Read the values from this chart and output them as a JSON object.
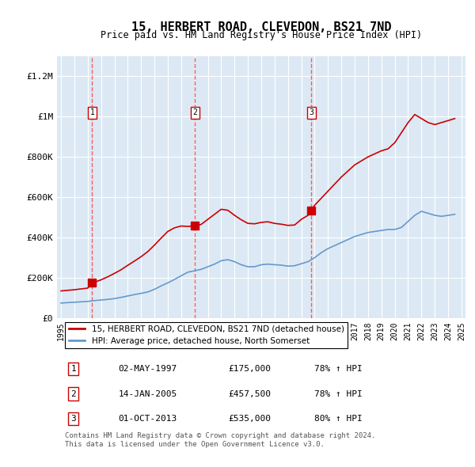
{
  "title": "15, HERBERT ROAD, CLEVEDON, BS21 7ND",
  "subtitle": "Price paid vs. HM Land Registry's House Price Index (HPI)",
  "ylabel": "",
  "background_color": "#dce9f5",
  "plot_bg_color": "#dce9f5",
  "grid_color": "#ffffff",
  "ylim": [
    0,
    1300000
  ],
  "yticks": [
    0,
    200000,
    400000,
    600000,
    800000,
    1000000,
    1200000
  ],
  "ytick_labels": [
    "£0",
    "£200K",
    "£400K",
    "£600K",
    "£800K",
    "£1M",
    "£1.2M"
  ],
  "year_start": 1995,
  "year_end": 2025,
  "sale_dates": [
    1997.33,
    2005.04,
    2013.75
  ],
  "sale_prices": [
    175000,
    457500,
    535000
  ],
  "sale_labels": [
    "1",
    "2",
    "3"
  ],
  "sale_info": [
    [
      "1",
      "02-MAY-1997",
      "£175,000",
      "78% ↑ HPI"
    ],
    [
      "2",
      "14-JAN-2005",
      "£457,500",
      "78% ↑ HPI"
    ],
    [
      "3",
      "01-OCT-2013",
      "£535,000",
      "80% ↑ HPI"
    ]
  ],
  "line_color_red": "#cc0000",
  "line_color_blue": "#6699cc",
  "marker_color": "#cc0000",
  "dashed_line_color": "#ff4444",
  "legend_label_red": "15, HERBERT ROAD, CLEVEDON, BS21 7ND (detached house)",
  "legend_label_blue": "HPI: Average price, detached house, North Somerset",
  "footer": "Contains HM Land Registry data © Crown copyright and database right 2024.\nThis data is licensed under the Open Government Licence v3.0.",
  "hpi_years": [
    1995,
    1995.5,
    1996,
    1996.5,
    1997,
    1997.5,
    1998,
    1998.5,
    1999,
    1999.5,
    2000,
    2000.5,
    2001,
    2001.5,
    2002,
    2002.5,
    2003,
    2003.5,
    2004,
    2004.5,
    2005,
    2005.5,
    2006,
    2006.5,
    2007,
    2007.5,
    2008,
    2008.5,
    2009,
    2009.5,
    2010,
    2010.5,
    2011,
    2011.5,
    2012,
    2012.5,
    2013,
    2013.5,
    2014,
    2014.5,
    2015,
    2015.5,
    2016,
    2016.5,
    2017,
    2017.5,
    2018,
    2018.5,
    2019,
    2019.5,
    2020,
    2020.5,
    2021,
    2021.5,
    2022,
    2022.5,
    2023,
    2023.5,
    2024,
    2024.5
  ],
  "hpi_values": [
    75000,
    77000,
    79000,
    81000,
    83000,
    87000,
    90000,
    93000,
    97000,
    103000,
    110000,
    117000,
    123000,
    130000,
    143000,
    160000,
    175000,
    192000,
    210000,
    228000,
    235000,
    242000,
    255000,
    268000,
    285000,
    290000,
    280000,
    265000,
    255000,
    255000,
    265000,
    268000,
    265000,
    263000,
    258000,
    260000,
    270000,
    280000,
    300000,
    325000,
    345000,
    360000,
    375000,
    390000,
    405000,
    415000,
    425000,
    430000,
    435000,
    440000,
    440000,
    450000,
    480000,
    510000,
    530000,
    520000,
    510000,
    505000,
    510000,
    515000
  ],
  "price_years": [
    1995,
    1995.5,
    1996,
    1996.5,
    1997,
    1997.33,
    1997.5,
    1998,
    1998.5,
    1999,
    1999.5,
    2000,
    2000.5,
    2001,
    2001.5,
    2002,
    2002.5,
    2003,
    2003.5,
    2004,
    2004.5,
    2005,
    2005.04,
    2005.5,
    2006,
    2006.5,
    2007,
    2007.5,
    2008,
    2008.5,
    2009,
    2009.5,
    2010,
    2010.5,
    2011,
    2011.5,
    2012,
    2012.5,
    2013,
    2013.5,
    2013.75,
    2014,
    2014.5,
    2015,
    2015.5,
    2016,
    2016.5,
    2017,
    2017.5,
    2018,
    2018.5,
    2019,
    2019.5,
    2020,
    2020.5,
    2021,
    2021.5,
    2022,
    2022.5,
    2023,
    2023.5,
    2024,
    2024.5
  ],
  "price_values": [
    135000,
    138000,
    141000,
    145000,
    149000,
    175000,
    178000,
    190000,
    205000,
    222000,
    240000,
    262000,
    283000,
    305000,
    330000,
    362000,
    397000,
    430000,
    448000,
    457000,
    455000,
    457500,
    457500,
    465000,
    490000,
    515000,
    540000,
    535000,
    510000,
    488000,
    470000,
    468000,
    475000,
    478000,
    470000,
    466000,
    460000,
    462000,
    490000,
    510000,
    535000,
    560000,
    595000,
    630000,
    665000,
    700000,
    730000,
    760000,
    780000,
    800000,
    815000,
    830000,
    840000,
    870000,
    920000,
    970000,
    1010000,
    990000,
    970000,
    960000,
    970000,
    980000,
    990000
  ]
}
